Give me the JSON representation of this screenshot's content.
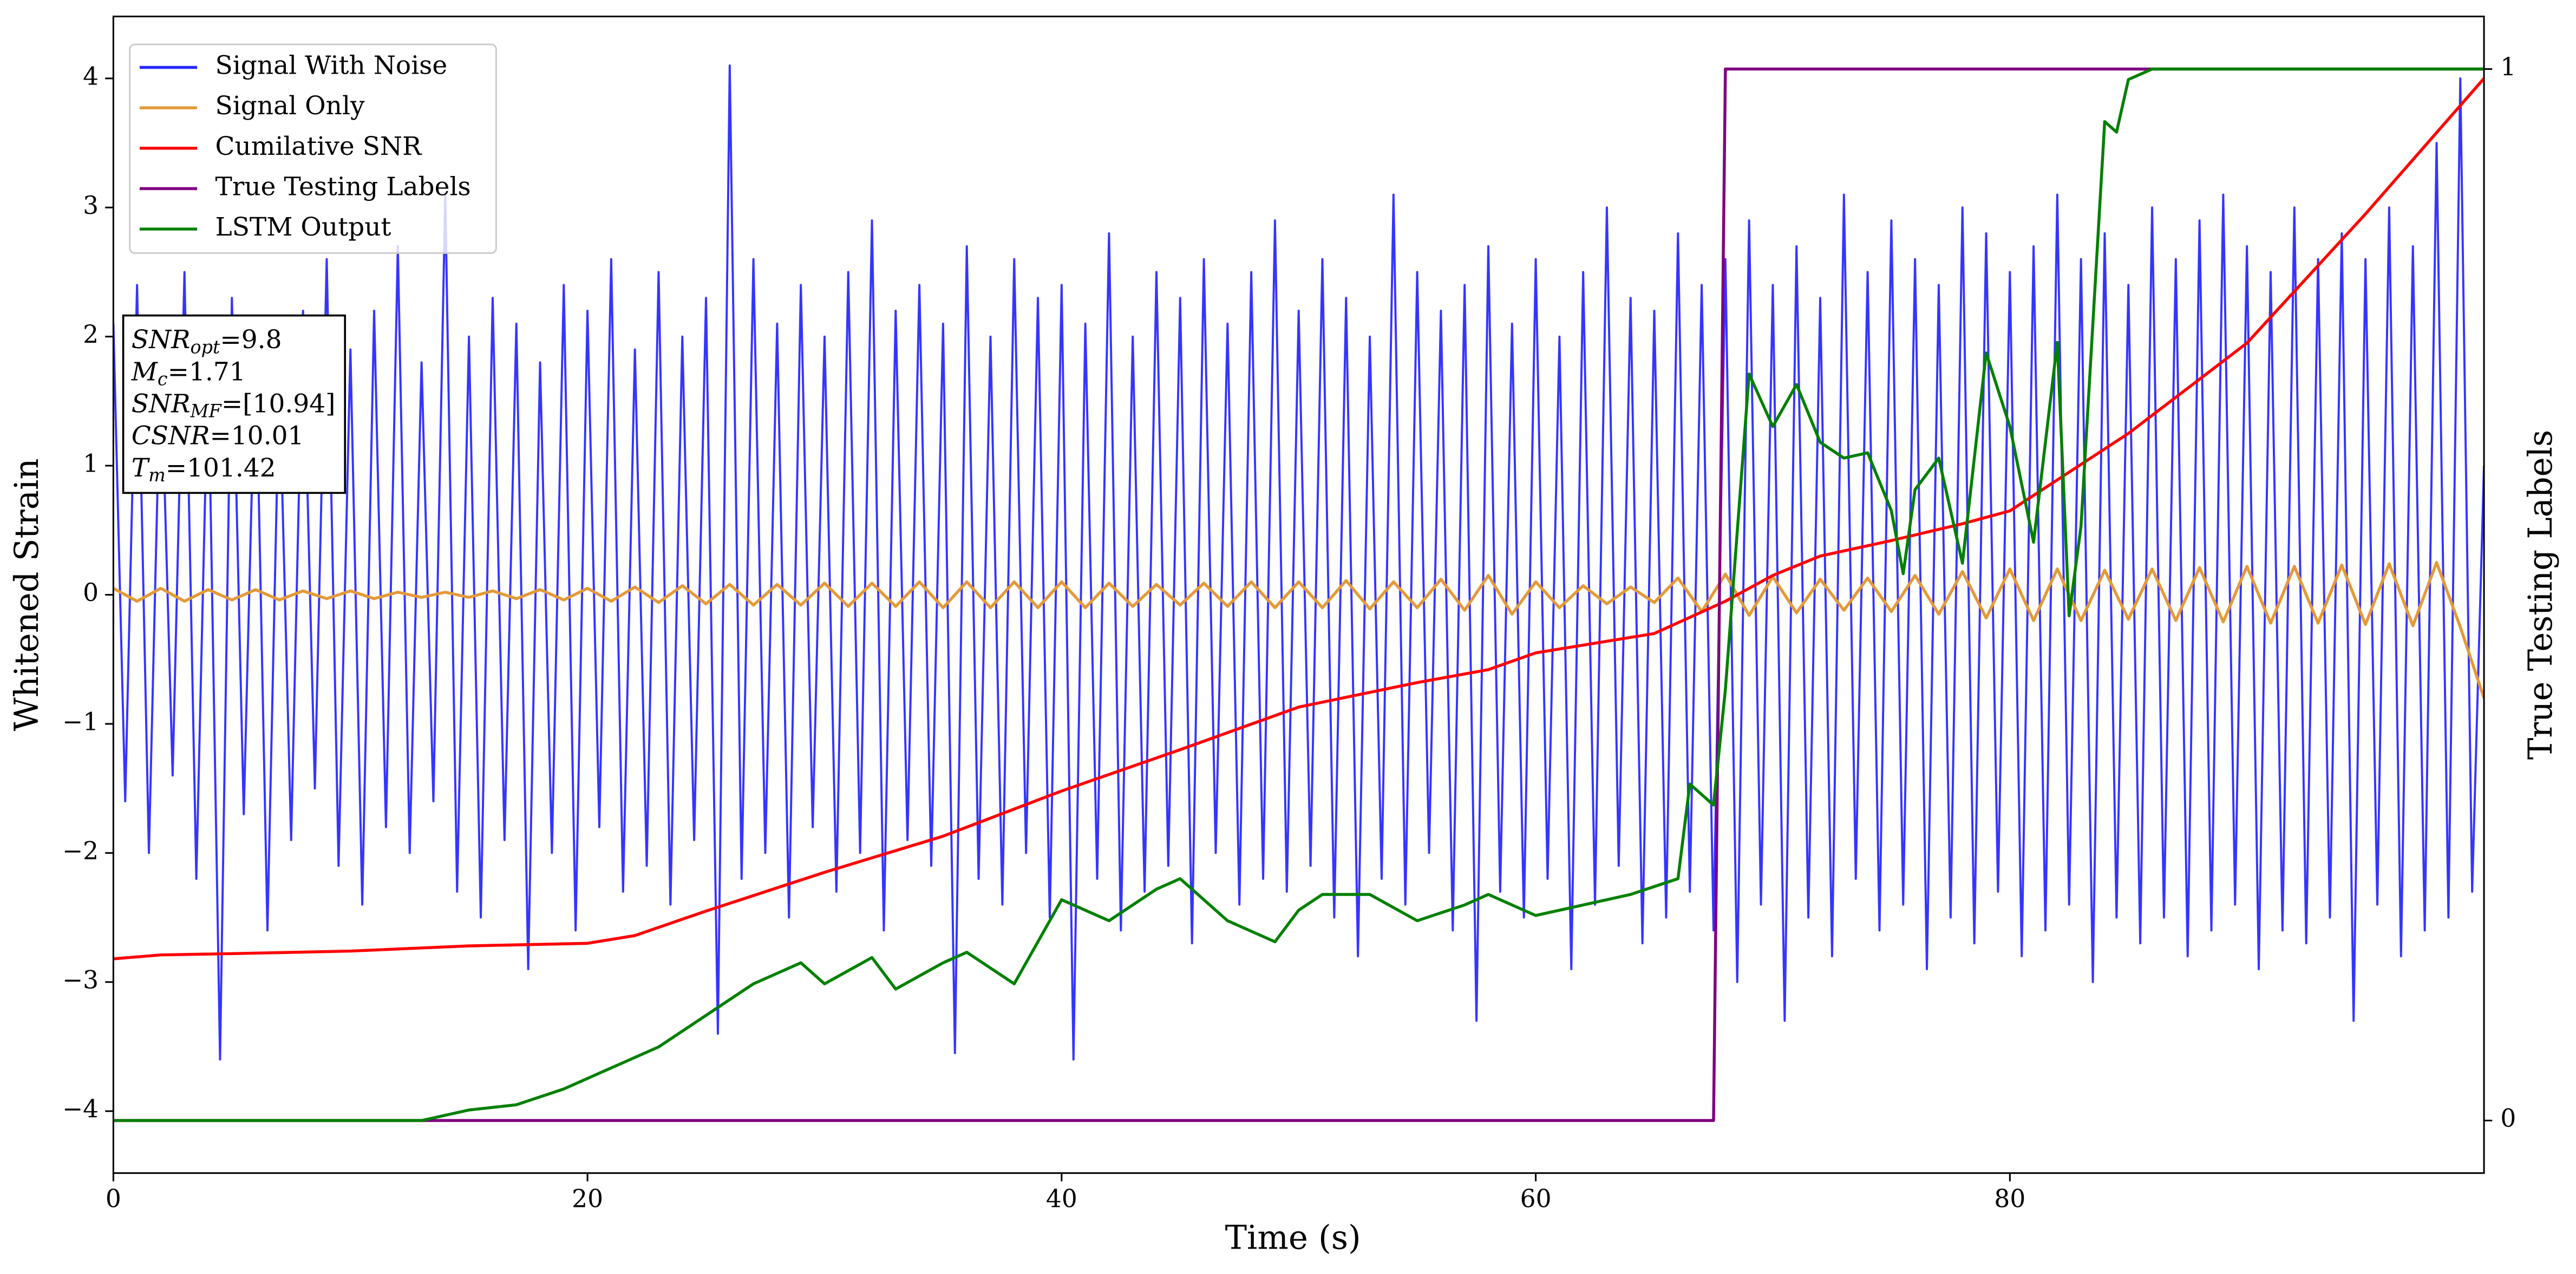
{
  "chart_data": {
    "type": "line",
    "x_label": "Time (s)",
    "y_label": "Whitened Strain",
    "y2_label": "True Testing Labels",
    "xlim": [
      0,
      100
    ],
    "ylim": [
      -4.48,
      4.48
    ],
    "y2lim": [
      -0.05,
      1.05
    ],
    "xticks": [
      0,
      20,
      40,
      60,
      80
    ],
    "yticks": [
      {
        "value": -4,
        "label": "−4"
      },
      {
        "value": -3,
        "label": "−3"
      },
      {
        "value": -2,
        "label": "−2"
      },
      {
        "value": -1,
        "label": "−1"
      },
      0,
      1,
      2,
      3,
      4
    ],
    "y2ticks": [
      0,
      1
    ],
    "legend": "upper left",
    "series": [
      {
        "name": "Signal With Noise",
        "color": "#2a2aff",
        "x": [
          0,
          0.5,
          1,
          1.5,
          2,
          2.5,
          3,
          3.5,
          4,
          4.5,
          5,
          5.5,
          6,
          6.5,
          7,
          7.5,
          8,
          8.5,
          9,
          9.5,
          10,
          10.5,
          11,
          11.5,
          12,
          12.5,
          13,
          13.5,
          14,
          14.5,
          15,
          15.5,
          16,
          16.5,
          17,
          17.5,
          18,
          18.5,
          19,
          19.5,
          20,
          20.5,
          21,
          21.5,
          22,
          22.5,
          23,
          23.5,
          24,
          24.5,
          25,
          25.5,
          26,
          26.5,
          27,
          27.5,
          28,
          28.5,
          29,
          29.5,
          30,
          30.5,
          31,
          31.5,
          32,
          32.5,
          33,
          33.5,
          34,
          34.5,
          35,
          35.5,
          36,
          36.5,
          37,
          37.5,
          38,
          38.5,
          39,
          39.5,
          40,
          40.5,
          41,
          41.5,
          42,
          42.5,
          43,
          43.5,
          44,
          44.5,
          45,
          45.5,
          46,
          46.5,
          47,
          47.5,
          48,
          48.5,
          49,
          49.5,
          50,
          50.5,
          51,
          51.5,
          52,
          52.5,
          53,
          53.5,
          54,
          54.5,
          55,
          55.5,
          56,
          56.5,
          57,
          57.5,
          58,
          58.5,
          59,
          59.5,
          60,
          60.5,
          61,
          61.5,
          62,
          62.5,
          63,
          63.5,
          64,
          64.5,
          65,
          65.5,
          66,
          66.5,
          67,
          67.5,
          68,
          68.5,
          69,
          69.5,
          70,
          70.5,
          71,
          71.5,
          72,
          72.5,
          73,
          73.5,
          74,
          74.5,
          75,
          75.5,
          76,
          76.5,
          77,
          77.5,
          78,
          78.5,
          79,
          79.5,
          80,
          80.5,
          81,
          81.5,
          82,
          82.5,
          83,
          83.5,
          84,
          84.5,
          85,
          85.5,
          86,
          86.5,
          87,
          87.5,
          88,
          88.5,
          89,
          89.5,
          90,
          90.5,
          91,
          91.5,
          92,
          92.5,
          93,
          93.5,
          94,
          94.5,
          95,
          95.5,
          96,
          96.5,
          97,
          97.5,
          98,
          98.5,
          99,
          99.5,
          100
        ],
        "values": [
          2.1,
          -1.6,
          2.4,
          -2.0,
          1.9,
          -1.4,
          2.5,
          -2.2,
          1.8,
          -3.6,
          2.3,
          -1.7,
          2.0,
          -2.6,
          1.7,
          -1.9,
          2.2,
          -1.5,
          2.6,
          -2.1,
          1.9,
          -2.4,
          2.2,
          -1.8,
          2.7,
          -2.0,
          1.8,
          -1.6,
          3.1,
          -2.3,
          2.0,
          -2.5,
          2.3,
          -1.9,
          2.1,
          -2.9,
          1.8,
          -2.0,
          2.4,
          -2.6,
          2.2,
          -1.8,
          2.6,
          -2.3,
          1.9,
          -2.1,
          2.5,
          -2.4,
          2.0,
          -1.9,
          2.3,
          -3.4,
          4.1,
          -2.2,
          2.6,
          -2.0,
          2.1,
          -2.5,
          2.4,
          -1.8,
          2.0,
          -2.3,
          2.5,
          -2.0,
          2.9,
          -2.6,
          2.2,
          -1.9,
          2.4,
          -2.1,
          2.1,
          -3.55,
          2.7,
          -2.2,
          2.0,
          -2.4,
          2.6,
          -2.0,
          2.3,
          -2.5,
          2.4,
          -3.6,
          2.1,
          -2.2,
          2.8,
          -2.6,
          2.0,
          -2.3,
          2.5,
          -2.1,
          2.3,
          -2.7,
          2.6,
          -2.0,
          2.1,
          -2.4,
          2.5,
          -2.2,
          2.9,
          -2.3,
          2.2,
          -2.1,
          2.6,
          -2.5,
          2.3,
          -2.8,
          2.0,
          -2.2,
          3.1,
          -2.4,
          2.5,
          -2.0,
          2.2,
          -2.6,
          2.4,
          -3.3,
          2.7,
          -2.3,
          2.1,
          -2.5,
          2.6,
          -2.2,
          2.0,
          -2.9,
          2.5,
          -2.4,
          3.0,
          -2.1,
          2.3,
          -2.7,
          2.2,
          -2.5,
          2.8,
          -2.3,
          2.4,
          -2.6,
          2.6,
          -3.0,
          2.9,
          -2.4,
          2.4,
          -3.3,
          2.7,
          -2.5,
          2.3,
          -2.8,
          3.1,
          -2.2,
          2.5,
          -2.6,
          2.9,
          -2.4,
          2.6,
          -2.9,
          2.4,
          -2.5,
          3.0,
          -2.7,
          2.8,
          -2.3,
          2.5,
          -2.8,
          2.7,
          -2.6,
          3.1,
          -2.4,
          2.6,
          -3.0,
          2.8,
          -2.5,
          2.4,
          -2.7,
          3.0,
          -2.5,
          2.6,
          -2.8,
          2.9,
          -2.6,
          3.1,
          -2.4,
          2.7,
          -2.9,
          2.5,
          -2.6,
          3.0,
          -2.7,
          2.6,
          -2.5,
          2.8,
          -3.3,
          2.6,
          -2.4,
          3.0,
          -2.8,
          2.7,
          -2.6,
          3.5,
          -2.5,
          4.0,
          -2.3,
          1.0
        ]
      },
      {
        "name": "Signal Only",
        "color": "#e39a38",
        "x": [
          0,
          1,
          2,
          3,
          4,
          5,
          6,
          7,
          8,
          9,
          10,
          11,
          12,
          13,
          14,
          15,
          16,
          17,
          18,
          19,
          20,
          21,
          22,
          23,
          24,
          25,
          26,
          27,
          28,
          29,
          30,
          31,
          32,
          33,
          34,
          35,
          36,
          37,
          38,
          39,
          40,
          41,
          42,
          43,
          44,
          45,
          46,
          47,
          48,
          49,
          50,
          51,
          52,
          53,
          54,
          55,
          56,
          57,
          58,
          59,
          60,
          61,
          62,
          63,
          64,
          65,
          66,
          67,
          68,
          69,
          70,
          71,
          72,
          73,
          74,
          75,
          76,
          77,
          78,
          79,
          80,
          81,
          82,
          83,
          84,
          85,
          86,
          87,
          88,
          89,
          90,
          91,
          92,
          93,
          94,
          95,
          96,
          97,
          98,
          99,
          100
        ],
        "values": [
          0.05,
          -0.05,
          0.05,
          -0.05,
          0.04,
          -0.04,
          0.04,
          -0.04,
          0.03,
          -0.03,
          0.03,
          -0.03,
          0.02,
          -0.02,
          0.02,
          -0.02,
          0.03,
          -0.03,
          0.04,
          -0.04,
          0.05,
          -0.05,
          0.06,
          -0.06,
          0.07,
          -0.07,
          0.08,
          -0.08,
          0.08,
          -0.08,
          0.09,
          -0.09,
          0.09,
          -0.09,
          0.1,
          -0.1,
          0.1,
          -0.1,
          0.1,
          -0.1,
          0.1,
          -0.1,
          0.09,
          -0.09,
          0.08,
          -0.08,
          0.09,
          -0.09,
          0.1,
          -0.1,
          0.1,
          -0.1,
          0.11,
          -0.11,
          0.1,
          -0.1,
          0.12,
          -0.12,
          0.15,
          -0.15,
          0.1,
          -0.1,
          0.07,
          -0.07,
          0.06,
          -0.06,
          0.13,
          -0.13,
          0.16,
          -0.16,
          0.14,
          -0.14,
          0.12,
          -0.12,
          0.13,
          -0.13,
          0.15,
          -0.15,
          0.18,
          -0.18,
          0.2,
          -0.2,
          0.2,
          -0.2,
          0.19,
          -0.19,
          0.2,
          -0.2,
          0.21,
          -0.21,
          0.22,
          -0.22,
          0.22,
          -0.22,
          0.23,
          -0.23,
          0.24,
          -0.24,
          0.25,
          -0.25,
          -0.8
        ]
      },
      {
        "name": "Cumilative SNR",
        "color": "#ff0000",
        "x": [
          0,
          2,
          5,
          10,
          15,
          20,
          22,
          25,
          30,
          35,
          40,
          45,
          50,
          55,
          58,
          60,
          65,
          68,
          70,
          72,
          75,
          78,
          80,
          85,
          90,
          95,
          100
        ],
        "values": [
          -2.82,
          -2.79,
          -2.78,
          -2.76,
          -2.72,
          -2.7,
          -2.64,
          -2.45,
          -2.15,
          -1.87,
          -1.52,
          -1.2,
          -0.87,
          -0.68,
          -0.58,
          -0.45,
          -0.3,
          -0.05,
          0.15,
          0.3,
          0.42,
          0.55,
          0.65,
          1.25,
          1.95,
          2.95,
          4.0
        ]
      },
      {
        "name": "True Testing Labels",
        "color": "#800080",
        "axis": "y2",
        "x": [
          0,
          67.5,
          68,
          100
        ],
        "values": [
          0,
          0,
          1,
          1
        ]
      },
      {
        "name": "LSTM Output",
        "color": "#008000",
        "axis": "y2",
        "x": [
          0,
          13,
          15,
          17,
          19,
          21,
          23,
          25,
          27,
          29,
          30,
          32,
          33,
          35,
          36,
          38,
          40,
          42,
          44,
          45,
          47,
          49,
          50,
          51,
          53,
          55,
          57,
          58,
          60,
          62,
          64,
          66,
          66.5,
          67.5,
          68,
          69,
          70,
          71,
          72,
          73,
          74,
          75,
          75.5,
          76,
          77,
          78,
          79,
          80,
          81,
          82,
          82.5,
          83,
          84,
          84.5,
          85,
          86,
          100
        ],
        "values": [
          0,
          0,
          0.01,
          0.015,
          0.03,
          0.05,
          0.07,
          0.1,
          0.13,
          0.15,
          0.13,
          0.155,
          0.125,
          0.15,
          0.16,
          0.13,
          0.21,
          0.19,
          0.22,
          0.23,
          0.19,
          0.17,
          0.2,
          0.215,
          0.215,
          0.19,
          0.205,
          0.215,
          0.195,
          0.205,
          0.215,
          0.23,
          0.32,
          0.3,
          0.41,
          0.71,
          0.66,
          0.7,
          0.645,
          0.63,
          0.635,
          0.58,
          0.52,
          0.6,
          0.63,
          0.53,
          0.73,
          0.66,
          0.55,
          0.74,
          0.48,
          0.565,
          0.95,
          0.94,
          0.99,
          1.0,
          1.0
        ]
      }
    ],
    "annotations": [
      {
        "label": "SNR",
        "subscript": "opt",
        "text": "=9.8"
      },
      {
        "label": "M",
        "subscript": "c",
        "text": "=1.71"
      },
      {
        "label": "SNR",
        "subscript": "MF",
        "text": "=[10.94]"
      },
      {
        "label": "CSNR",
        "text": "=10.01"
      },
      {
        "label": "T",
        "subscript": "m",
        "text": "=101.42"
      }
    ]
  }
}
